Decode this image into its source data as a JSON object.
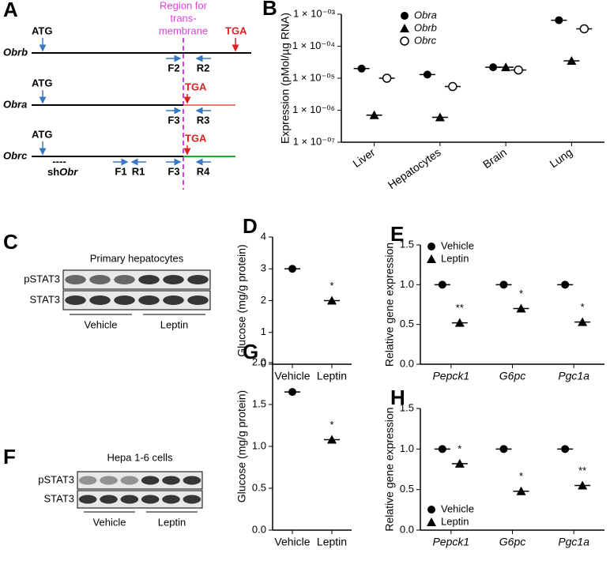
{
  "diagram": {
    "panel": "A",
    "region_label": [
      "Region for",
      "trans-",
      "membrane"
    ],
    "genes": [
      {
        "name": "Obrb",
        "start": "ATG",
        "stop": "TGA",
        "primers": [
          "F2",
          "R2"
        ]
      },
      {
        "name": "Obra",
        "start": "ATG",
        "stop": "TGA",
        "primers": [
          "F3",
          "R3"
        ]
      },
      {
        "name": "Obrc",
        "start": "ATG",
        "stop": "TGA",
        "primers": [
          "F1",
          "R1",
          "F3",
          "R4"
        ]
      }
    ],
    "shrna": {
      "dash": "----",
      "prefix": "sh",
      "gene": "Obr"
    }
  },
  "blots": [
    {
      "panel": "C",
      "title": "Primary hepatocytes",
      "rows": [
        "pSTAT3",
        "STAT3"
      ],
      "groups": [
        "Vehicle",
        "Leptin"
      ]
    },
    {
      "panel": "F",
      "title": "Hepa 1-6 cells",
      "rows": [
        "pSTAT3",
        "STAT3"
      ],
      "groups": [
        "Vehicle",
        "Leptin"
      ]
    }
  ],
  "chart_data": [
    {
      "panel": "B",
      "type": "dot",
      "ylabel": "Expression (pMol/µg RNA)",
      "log_y": true,
      "rotate_labels": true,
      "legend": "top-center",
      "categories": [
        "Liver",
        "Hepatocytes",
        "Brain",
        "Lung"
      ],
      "series": [
        {
          "name": "Obra",
          "marker": "circle",
          "color": "#000000",
          "values": [
            2e-05,
            1.3e-05,
            2.2e-05,
            0.00065
          ]
        },
        {
          "name": "Obrb",
          "marker": "triangle",
          "color": "#000000",
          "values": [
            7e-07,
            6e-07,
            2.2e-05,
            3.5e-05
          ]
        },
        {
          "name": "Obrc",
          "marker": "open-circle",
          "color": "#000000",
          "values": [
            1e-05,
            5.5e-06,
            1.8e-05,
            0.00035
          ]
        }
      ],
      "ylim": [
        1e-07,
        0.001
      ],
      "yticks": [
        {
          "value": 1e-07,
          "label": "1 × 10⁻⁰⁷"
        },
        {
          "value": 1e-06,
          "label": "1 × 10⁻⁰⁶"
        },
        {
          "value": 1e-05,
          "label": "1 × 10⁻⁰⁵"
        },
        {
          "value": 0.0001,
          "label": "1 × 10⁻⁰⁴"
        },
        {
          "value": 0.001,
          "label": "1 × 10⁻⁰³"
        }
      ]
    },
    {
      "panel": "D",
      "type": "dot",
      "ylabel": "Glucose (mg/g protein)",
      "categories": [
        "Vehicle",
        "Leptin"
      ],
      "series": [
        {
          "marker": "circle",
          "color": "#000000",
          "values": [
            3.0,
            null
          ]
        },
        {
          "marker": "triangle",
          "color": "#000000",
          "values": [
            null,
            2.0
          ],
          "annotations": [
            null,
            "*"
          ]
        }
      ],
      "ylim": [
        0,
        4
      ],
      "yticks": [
        0,
        1,
        2,
        3,
        4
      ]
    },
    {
      "panel": "E",
      "type": "dot",
      "ylabel": "Relative gene expression",
      "italic_categories": true,
      "legend": "top-left",
      "categories": [
        "Pepck1",
        "G6pc",
        "Pgc1a"
      ],
      "series": [
        {
          "name": "Vehicle",
          "marker": "circle",
          "color": "#000000",
          "values": [
            1.0,
            1.0,
            1.0
          ]
        },
        {
          "name": "Leptin",
          "marker": "triangle",
          "color": "#000000",
          "values": [
            0.52,
            0.7,
            0.53
          ],
          "annotations": [
            "**",
            "*",
            "*"
          ]
        }
      ],
      "ylim": [
        0,
        1.5
      ],
      "yticks": [
        {
          "value": 0,
          "label": "0.0"
        },
        0.5,
        {
          "value": 1,
          "label": "1.0"
        },
        1.5
      ]
    },
    {
      "panel": "G",
      "type": "dot",
      "ylabel": "Glucose (mg/g protein)",
      "categories": [
        "Vehicle",
        "Leptin"
      ],
      "series": [
        {
          "marker": "circle",
          "color": "#000000",
          "values": [
            1.65,
            null
          ]
        },
        {
          "marker": "triangle",
          "color": "#000000",
          "values": [
            null,
            1.08
          ],
          "annotations": [
            null,
            "*"
          ]
        }
      ],
      "ylim": [
        0,
        2
      ],
      "yticks": [
        {
          "value": 0,
          "label": "0.0"
        },
        0.5,
        {
          "value": 1,
          "label": "1.0"
        },
        1.5,
        {
          "value": 2,
          "label": "2.0"
        }
      ]
    },
    {
      "panel": "H",
      "type": "dot",
      "ylabel": "Relative gene expression",
      "italic_categories": true,
      "legend": "bottom-left",
      "categories": [
        "Pepck1",
        "G6pc",
        "Pgc1a"
      ],
      "series": [
        {
          "name": "Vehicle",
          "marker": "circle",
          "color": "#000000",
          "values": [
            1.0,
            1.0,
            1.0
          ]
        },
        {
          "name": "Leptin",
          "marker": "triangle",
          "color": "#000000",
          "values": [
            0.82,
            0.48,
            0.55
          ],
          "annotations": [
            "*",
            "*",
            "**"
          ]
        }
      ],
      "ylim": [
        0,
        1.5
      ],
      "yticks": [
        {
          "value": 0,
          "label": "0.0"
        },
        0.5,
        {
          "value": 1,
          "label": "1.0"
        },
        1.5
      ]
    }
  ]
}
